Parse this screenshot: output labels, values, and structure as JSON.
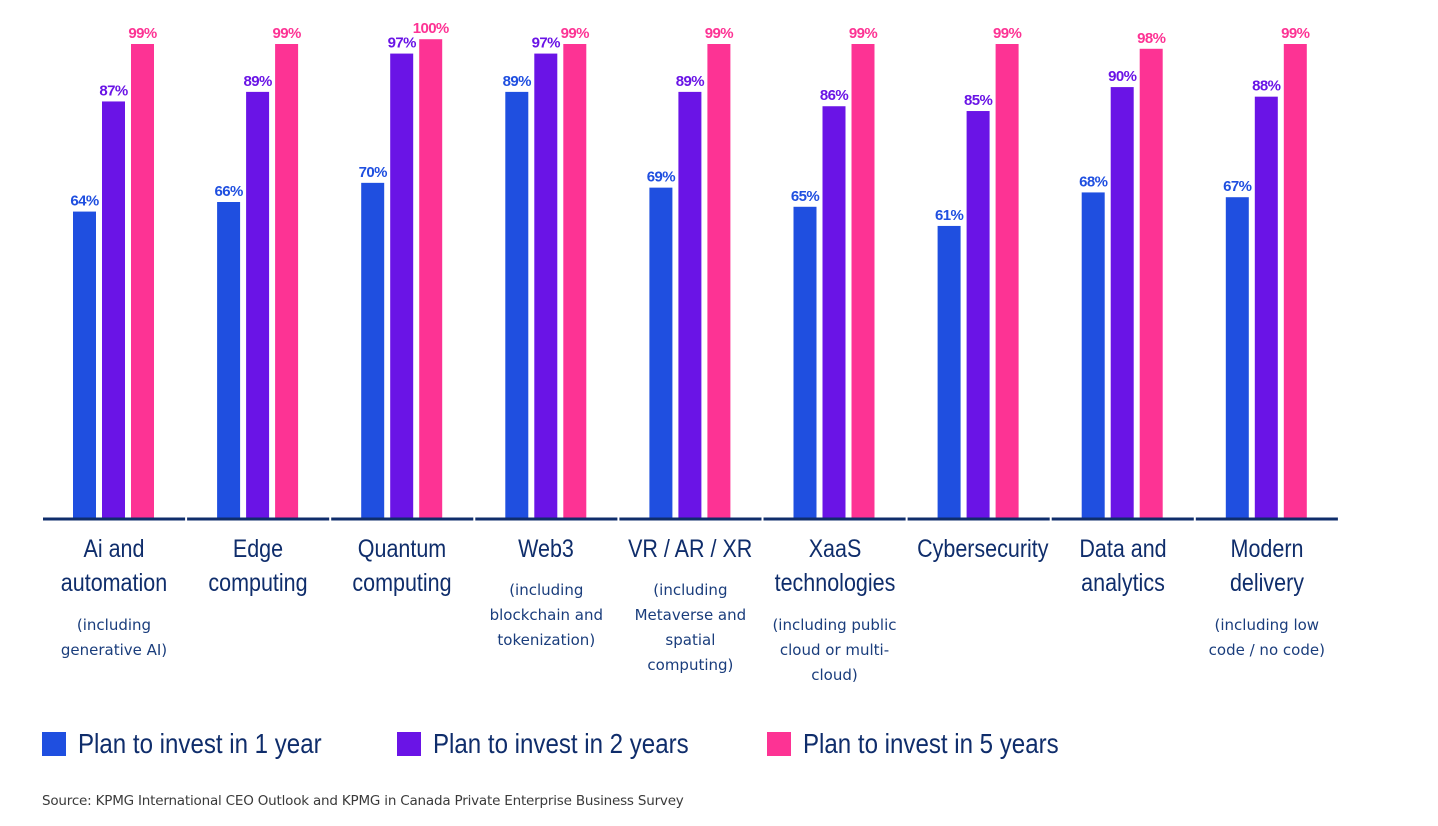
{
  "chart_data": {
    "type": "bar",
    "title": "",
    "xlabel": "",
    "ylabel": "",
    "ylim": [
      0,
      100
    ],
    "grid": false,
    "legend_position": "bottom-left",
    "categories": [
      "Ai and automation",
      "Edge computing",
      "Quantum computing",
      "Web3",
      "VR / AR / XR",
      "XaaS technologies",
      "Cybersecurity",
      "Data and analytics",
      "Modern delivery"
    ],
    "category_titles": [
      [
        "Ai and",
        "automation"
      ],
      [
        "Edge",
        "computing"
      ],
      [
        "Quantum",
        "computing"
      ],
      [
        "Web3"
      ],
      [
        "VR / AR / XR"
      ],
      [
        "XaaS",
        "technologies"
      ],
      [
        "Cybersecurity"
      ],
      [
        "Data and",
        "analytics"
      ],
      [
        "Modern",
        "delivery"
      ]
    ],
    "category_subtitles": [
      [
        "(including",
        "generative AI)"
      ],
      [],
      [],
      [
        "(including",
        "blockchain and",
        "tokenization)"
      ],
      [
        "(including",
        "Metaverse and",
        "spatial",
        "computing)"
      ],
      [
        "(including public",
        "cloud or multi-",
        "cloud)"
      ],
      [],
      [],
      [
        "(including low",
        "code / no code)"
      ]
    ],
    "series": [
      {
        "name": "Plan to invest in 1 year",
        "color": "#1f4fe0",
        "label_color": "#1f4fe0",
        "values": [
          64,
          66,
          70,
          89,
          69,
          65,
          61,
          68,
          67
        ]
      },
      {
        "name": "Plan to invest in 2 years",
        "color": "#6a14e6",
        "label_color": "#6a14e6",
        "values": [
          87,
          89,
          97,
          97,
          89,
          86,
          85,
          90,
          88
        ]
      },
      {
        "name": "Plan to invest in 5 years",
        "color": "#fd3394",
        "label_color": "#fd3394",
        "values": [
          99,
          99,
          100,
          99,
          99,
          99,
          99,
          98,
          99
        ]
      }
    ],
    "value_suffix": "%",
    "axis_color": "#0f2d6b"
  },
  "legend": {
    "items": [
      {
        "label": "Plan to invest in 1 year",
        "color": "#1f4fe0"
      },
      {
        "label": "Plan to invest in 2 years",
        "color": "#6a14e6"
      },
      {
        "label": "Plan to invest in 5 years",
        "color": "#fd3394"
      }
    ]
  },
  "source": "Source: KPMG International CEO Outlook and KPMG in Canada Private Enterprise Business Survey"
}
